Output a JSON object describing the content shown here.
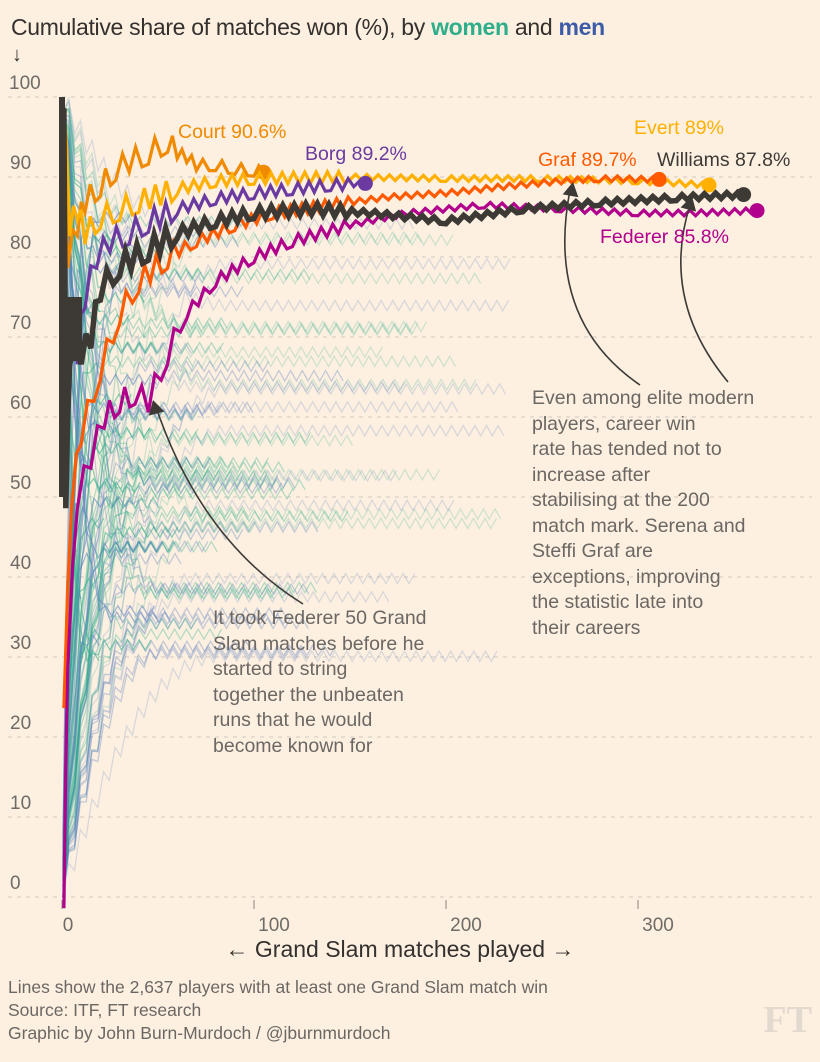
{
  "chart_data": {
    "type": "line",
    "title": "Cumulative share of matches won (%), by women and men",
    "title_parts": {
      "prefix": "Cumulative share of matches won (%), by ",
      "women": "women",
      "and": " and ",
      "men": "men"
    },
    "y_axis_arrow": "↓",
    "xlabel": "← Grand Slam matches played →",
    "ylabel": "Cumulative share of matches won (%)",
    "xlim": [
      0,
      390
    ],
    "ylim": [
      0,
      100
    ],
    "x_ticks": [
      0,
      100,
      200,
      300
    ],
    "y_ticks": [
      0,
      10,
      20,
      30,
      40,
      50,
      60,
      70,
      80,
      90,
      100
    ],
    "grid": true,
    "colors": {
      "women": "#2eae8a",
      "men": "#3d5ca8",
      "background_lines_women": "#2eae8a",
      "background_lines_men": "#5a7fbf",
      "Court": "#f08a00",
      "Evert": "#ffb000",
      "Borg": "#6a3aa0",
      "Graf": "#ff5a00",
      "Williams": "#3d3a36",
      "Federer": "#b0008c"
    },
    "series": [
      {
        "name": "Court",
        "label": "Court 90.6%",
        "final_value": 90.6,
        "final_matches": 105,
        "points": [
          [
            1,
            100
          ],
          [
            3,
            80
          ],
          [
            8,
            84
          ],
          [
            12,
            87
          ],
          [
            20,
            89
          ],
          [
            28,
            91
          ],
          [
            35,
            92
          ],
          [
            45,
            93
          ],
          [
            55,
            94.5
          ],
          [
            60,
            93
          ],
          [
            65,
            92.5
          ],
          [
            70,
            91.5
          ],
          [
            80,
            91.5
          ],
          [
            90,
            91
          ],
          [
            100,
            90.8
          ],
          [
            105,
            90.6
          ]
        ]
      },
      {
        "name": "Borg",
        "label": "Borg 89.2%",
        "final_value": 89.2,
        "final_matches": 158,
        "points": [
          [
            1,
            75
          ],
          [
            5,
            70
          ],
          [
            8,
            68
          ],
          [
            12,
            75
          ],
          [
            18,
            80
          ],
          [
            25,
            82
          ],
          [
            35,
            83
          ],
          [
            45,
            84.5
          ],
          [
            60,
            86
          ],
          [
            80,
            87.3
          ],
          [
            100,
            88
          ],
          [
            120,
            88.5
          ],
          [
            140,
            89
          ],
          [
            158,
            89.2
          ]
        ]
      },
      {
        "name": "Graf",
        "label": "Graf 89.7%",
        "final_value": 89.7,
        "final_matches": 311,
        "points": [
          [
            1,
            25
          ],
          [
            5,
            50
          ],
          [
            10,
            58
          ],
          [
            20,
            66
          ],
          [
            30,
            73
          ],
          [
            40,
            77
          ],
          [
            55,
            80
          ],
          [
            70,
            82
          ],
          [
            90,
            84
          ],
          [
            110,
            85.5
          ],
          [
            140,
            86.5
          ],
          [
            170,
            87.5
          ],
          [
            200,
            88
          ],
          [
            230,
            88.8
          ],
          [
            260,
            89.5
          ],
          [
            280,
            89.8
          ],
          [
            311,
            89.7
          ]
        ]
      },
      {
        "name": "Evert",
        "label": "Evert 89%",
        "final_value": 89.0,
        "final_matches": 337,
        "points": [
          [
            1,
            100
          ],
          [
            4,
            84
          ],
          [
            8,
            86
          ],
          [
            12,
            83
          ],
          [
            20,
            85
          ],
          [
            30,
            86
          ],
          [
            40,
            87
          ],
          [
            60,
            88.5
          ],
          [
            80,
            89.5
          ],
          [
            100,
            89.8
          ],
          [
            150,
            90
          ],
          [
            200,
            89.8
          ],
          [
            250,
            89.8
          ],
          [
            300,
            89.5
          ],
          [
            337,
            89.0
          ]
        ]
      },
      {
        "name": "Williams",
        "label": "Williams 87.8%",
        "final_value": 87.8,
        "final_matches": 355,
        "points": [
          [
            1,
            100
          ],
          [
            2,
            50
          ],
          [
            4,
            68
          ],
          [
            10,
            68
          ],
          [
            15,
            70
          ],
          [
            20,
            76
          ],
          [
            30,
            79
          ],
          [
            45,
            81
          ],
          [
            60,
            83
          ],
          [
            80,
            84.5
          ],
          [
            100,
            85.5
          ],
          [
            130,
            86
          ],
          [
            160,
            85.5
          ],
          [
            200,
            84.5
          ],
          [
            240,
            86
          ],
          [
            280,
            86.8
          ],
          [
            320,
            87.4
          ],
          [
            355,
            87.8
          ]
        ]
      },
      {
        "name": "Federer",
        "label": "Federer 85.8%",
        "final_value": 85.8,
        "final_matches": 362,
        "points": [
          [
            1,
            0
          ],
          [
            3,
            30
          ],
          [
            8,
            50
          ],
          [
            15,
            55
          ],
          [
            22,
            60
          ],
          [
            30,
            62
          ],
          [
            38,
            63
          ],
          [
            45,
            62
          ],
          [
            55,
            68
          ],
          [
            65,
            73
          ],
          [
            80,
            77
          ],
          [
            100,
            80
          ],
          [
            120,
            82
          ],
          [
            150,
            84
          ],
          [
            180,
            85.5
          ],
          [
            220,
            86.5
          ],
          [
            260,
            86
          ],
          [
            300,
            85.5
          ],
          [
            330,
            85.5
          ],
          [
            362,
            85.8
          ]
        ]
      }
    ],
    "background_lines_count": 2637,
    "annotations": [
      {
        "target": "Federer",
        "at_matches": 50,
        "text": "It took Federer 50 Grand Slam matches before he started to string together the unbeaten runs that he would become known for"
      },
      {
        "target": [
          "Graf",
          "Williams"
        ],
        "text": "Even among elite modern players, career win rate has tended not to increase after stabilising at the 200 match mark. Serena and Steffi Graf are exceptions, improving the statistic late into their careers"
      }
    ]
  },
  "notes": {
    "federer_lines": [
      "It took Federer 50 Grand",
      "Slam matches before he",
      "started to string",
      "together the unbeaten",
      "runs that he would",
      "become known for"
    ],
    "elite_lines": [
      "Even among elite modern",
      "players, career win",
      "rate has tended not to",
      "increase after",
      "stabilising at the 200",
      "match mark. Serena and",
      "Steffi Graf are",
      "exceptions, improving",
      "the statistic late into",
      "their careers"
    ]
  },
  "footer": {
    "line1": "Lines show the 2,637 players with at least one Grand Slam match win",
    "line2": "Source: ITF, FT research",
    "line3": "Graphic by John Burn-Murdoch / @jburnmurdoch"
  },
  "logo": "FT"
}
